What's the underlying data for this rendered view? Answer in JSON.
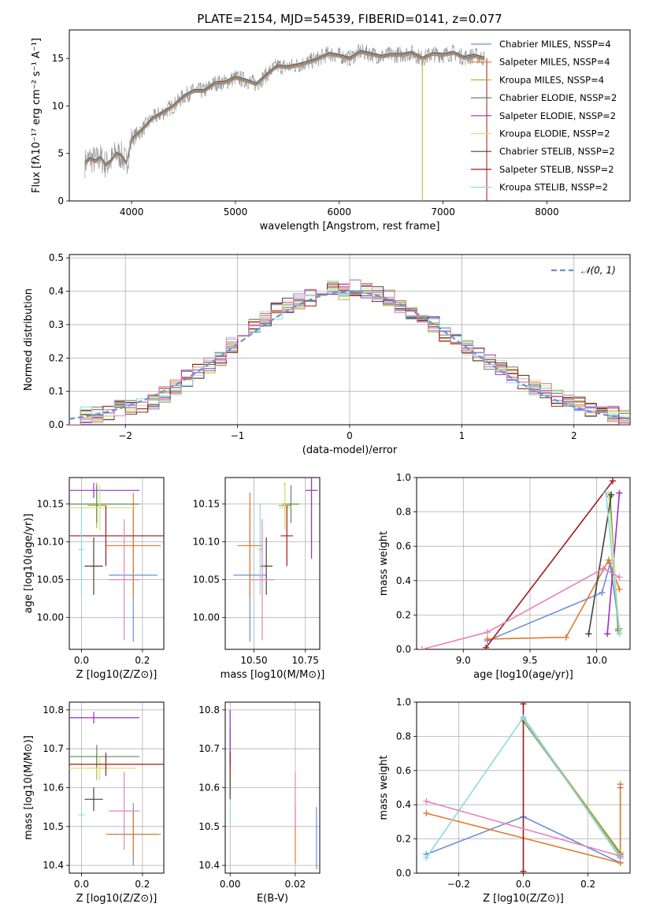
{
  "figure_title": "PLATE=2154, MJD=54539, FIBERID=0141, z=0.077",
  "colors": [
    "#6a8fd8",
    "#e07a2c",
    "#bcae32",
    "#5a8a5a",
    "#9b2fc2",
    "#d7e37a",
    "#444444",
    "#a01818",
    "#8bdbe0",
    "#e882b8"
  ],
  "chart_data": [
    {
      "id": "spectrum",
      "type": "line",
      "title": "PLATE=2154, MJD=54539, FIBERID=0141, z=0.077",
      "xlabel": "wavelength [Angstrom, rest frame]",
      "ylabel": "Flux [fλ10⁻¹⁷ erg cm⁻² s⁻¹ A⁻¹]",
      "xlim": [
        3400,
        8800
      ],
      "ylim": [
        0,
        18
      ],
      "xticks": [
        4000,
        5000,
        6000,
        7000,
        8000
      ],
      "yticks": [
        0,
        5,
        10,
        15
      ],
      "grid": false,
      "legend_position": "top-right",
      "data_curve": {
        "name": "data",
        "x": [
          3550,
          3600,
          3650,
          3700,
          3750,
          3800,
          3850,
          3900,
          3950,
          4000,
          4100,
          4200,
          4300,
          4400,
          4500,
          4600,
          4700,
          4800,
          4900,
          5000,
          5100,
          5200,
          5300,
          5400,
          5500,
          5600,
          5700,
          5800,
          5900,
          6000,
          6100,
          6200,
          6300,
          6400,
          6500,
          6600,
          6700,
          6800,
          6900,
          7000,
          7100,
          7200,
          7300,
          7400
        ],
        "y": [
          4.0,
          4.5,
          4.2,
          4.6,
          3.8,
          4.2,
          5.0,
          4.8,
          4.0,
          6.5,
          7.5,
          8.7,
          9.3,
          10.0,
          11.0,
          11.6,
          11.6,
          12.4,
          12.5,
          13.0,
          12.7,
          12.3,
          13.3,
          14.2,
          14.1,
          14.3,
          14.6,
          15.0,
          15.5,
          15.3,
          15.0,
          15.7,
          15.5,
          15.2,
          15.4,
          15.4,
          15.6,
          15.0,
          15.5,
          15.4,
          15.6,
          15.1,
          15.3,
          15.0
        ]
      },
      "legend": [
        {
          "label": "Chabrier MILES, NSSP=4",
          "color": "#6a8fd8"
        },
        {
          "label": "Salpeter MILES, NSSP=4",
          "color": "#e07a2c"
        },
        {
          "label": "Kroupa MILES, NSSP=4",
          "color": "#bcae32"
        },
        {
          "label": "Chabrier ELODIE, NSSP=2",
          "color": "#5a8a5a"
        },
        {
          "label": "Salpeter ELODIE, NSSP=2",
          "color": "#9b2fc2"
        },
        {
          "label": "Kroupa ELODIE, NSSP=2",
          "color": "#d7e37a"
        },
        {
          "label": "Chabrier STELIB, NSSP=2",
          "color": "#444444"
        },
        {
          "label": "Salpeter STELIB, NSSP=2",
          "color": "#a01818"
        },
        {
          "label": "Kroupa STELIB, NSSP=2",
          "color": "#8bdbe0"
        }
      ]
    },
    {
      "id": "residuals",
      "type": "line",
      "xlabel": "(data-model)/error",
      "ylabel": "Normed distribution",
      "xlim": [
        -2.5,
        2.5
      ],
      "ylim": [
        0,
        0.51
      ],
      "xticks": [
        -2,
        -1,
        0,
        1,
        2
      ],
      "yticks": [
        0.0,
        0.1,
        0.2,
        0.3,
        0.4,
        0.5
      ],
      "grid": true,
      "legend_position": "top-right",
      "reference_curve": {
        "name": "𝒩(0, 1)",
        "color": "#6a8fd8",
        "dashed": true
      },
      "bin_centers": [
        -2.45,
        -2.35,
        -2.25,
        -2.15,
        -2.05,
        -1.95,
        -1.85,
        -1.75,
        -1.65,
        -1.55,
        -1.45,
        -1.35,
        -1.25,
        -1.15,
        -1.05,
        -0.95,
        -0.85,
        -0.75,
        -0.65,
        -0.55,
        -0.45,
        -0.35,
        -0.25,
        -0.15,
        -0.05,
        0.05,
        0.15,
        0.25,
        0.35,
        0.45,
        0.55,
        0.65,
        0.75,
        0.85,
        0.95,
        1.05,
        1.15,
        1.25,
        1.35,
        1.45,
        1.55,
        1.65,
        1.75,
        1.85,
        1.95,
        2.05,
        2.15,
        2.25,
        2.35,
        2.45
      ],
      "histogram_values": [
        0.02,
        0.03,
        0.03,
        0.04,
        0.05,
        0.05,
        0.06,
        0.07,
        0.09,
        0.11,
        0.14,
        0.16,
        0.18,
        0.2,
        0.24,
        0.27,
        0.3,
        0.32,
        0.34,
        0.36,
        0.37,
        0.38,
        0.4,
        0.41,
        0.4,
        0.41,
        0.4,
        0.39,
        0.38,
        0.36,
        0.34,
        0.32,
        0.3,
        0.27,
        0.25,
        0.23,
        0.21,
        0.19,
        0.17,
        0.15,
        0.13,
        0.11,
        0.1,
        0.08,
        0.07,
        0.06,
        0.05,
        0.04,
        0.03,
        0.02
      ]
    },
    {
      "id": "age-vs-Z",
      "type": "scatter",
      "xlabel": "Z [log10(Z/Z⊙)]",
      "ylabel": "age  [log10(age/yr)]",
      "xlim": [
        -0.04,
        0.27
      ],
      "ylim": [
        9.958,
        10.185
      ],
      "xticks": [
        0.0,
        0.2
      ],
      "xticklabels": [
        "0.0",
        "0.2"
      ],
      "yticks": [
        10.0,
        10.05,
        10.1,
        10.15
      ],
      "yticklabels": [
        "10.00",
        "10.05",
        "10.10",
        "10.15"
      ],
      "grid": true,
      "points": [
        {
          "x": 0.17,
          "xerr": 0.08,
          "y": 10.056,
          "yerr": 0.088,
          "color": "#6a8fd8"
        },
        {
          "x": 0.17,
          "xerr": 0.09,
          "y": 10.095,
          "yerr": 0.07,
          "color": "#e07a2c"
        },
        {
          "x": 0.05,
          "xerr": 0.03,
          "y": 10.148,
          "yerr": 0.03,
          "color": "#bcae32"
        },
        {
          "x": 0.05,
          "xerr": 0.14,
          "y": 10.15,
          "yerr": 0.025,
          "color": "#5a8a5a"
        },
        {
          "x": 0.04,
          "xerr": 0.15,
          "y": 10.168,
          "yerr": 0.01,
          "color": "#9b2fc2"
        },
        {
          "x": 0.06,
          "xerr": 0.12,
          "y": 10.145,
          "yerr": 0.03,
          "color": "#d7e37a"
        },
        {
          "x": 0.04,
          "xerr": 0.03,
          "y": 10.068,
          "yerr": 0.038,
          "color": "#444444"
        },
        {
          "x": 0.08,
          "xerr": 0.19,
          "y": 10.108,
          "yerr": 0.04,
          "color": "#a01818"
        },
        {
          "x": 0.0,
          "xerr": 0.01,
          "y": 10.09,
          "yerr": 0.06,
          "color": "#8bdbe0"
        },
        {
          "x": 0.14,
          "xerr": 0.05,
          "y": 10.05,
          "yerr": 0.08,
          "color": "#e882b8"
        }
      ]
    },
    {
      "id": "age-vs-mass",
      "type": "scatter",
      "xlabel": "mass [log10(M/M⊙)]",
      "xlim": [
        10.36,
        10.82
      ],
      "ylim": [
        9.958,
        10.185
      ],
      "xticks": [
        10.5,
        10.75
      ],
      "xticklabels": [
        "10.50",
        "10.75"
      ],
      "yticks": [
        10.0,
        10.05,
        10.1,
        10.15
      ],
      "yticklabels": [
        "10.00",
        "10.05",
        "10.10",
        "10.15"
      ],
      "grid": true,
      "points": [
        {
          "x": 10.48,
          "xerr": 0.08,
          "y": 10.056,
          "yerr": 0.088,
          "color": "#6a8fd8"
        },
        {
          "x": 10.48,
          "xerr": 0.06,
          "y": 10.095,
          "yerr": 0.07,
          "color": "#e07a2c"
        },
        {
          "x": 10.65,
          "xerr": 0.03,
          "y": 10.148,
          "yerr": 0.03,
          "color": "#bcae32"
        },
        {
          "x": 10.68,
          "xerr": 0.04,
          "y": 10.15,
          "yerr": 0.025,
          "color": "#5a8a5a"
        },
        {
          "x": 10.78,
          "xerr": 0.03,
          "y": 10.168,
          "yerr": 0.09,
          "color": "#9b2fc2"
        },
        {
          "x": 10.65,
          "xerr": 0.03,
          "y": 10.145,
          "yerr": 0.03,
          "color": "#d7e37a"
        },
        {
          "x": 10.56,
          "xerr": 0.03,
          "y": 10.068,
          "yerr": 0.038,
          "color": "#444444"
        },
        {
          "x": 10.66,
          "xerr": 0.03,
          "y": 10.108,
          "yerr": 0.04,
          "color": "#a01818"
        },
        {
          "x": 10.53,
          "xerr": 0.01,
          "y": 10.09,
          "yerr": 0.06,
          "color": "#8bdbe0"
        },
        {
          "x": 10.54,
          "xerr": 0.06,
          "y": 10.05,
          "yerr": 0.08,
          "color": "#e882b8"
        }
      ]
    },
    {
      "id": "weight-vs-age",
      "type": "line",
      "xlabel": "age  [log10(age/yr)]",
      "ylabel": "mass weight",
      "xlim": [
        8.65,
        10.25
      ],
      "ylim": [
        0,
        1.0
      ],
      "xticks": [
        9.0,
        9.5,
        10.0
      ],
      "xticklabels": [
        "9.0",
        "9.5",
        "10.0"
      ],
      "yticks": [
        0.0,
        0.2,
        0.4,
        0.6,
        0.8,
        1.0
      ],
      "yticklabels": [
        "0.0",
        "0.2",
        "0.4",
        "0.6",
        "0.8",
        "1.0"
      ],
      "grid": true,
      "series": [
        {
          "color": "#6a8fd8",
          "x": [
            9.18,
            10.04,
            10.1,
            10.17
          ],
          "y": [
            0.05,
            0.33,
            0.5,
            0.12
          ]
        },
        {
          "color": "#e07a2c",
          "x": [
            9.18,
            9.77,
            10.09,
            10.17
          ],
          "y": [
            0.06,
            0.07,
            0.52,
            0.35
          ]
        },
        {
          "color": "#bcae32",
          "x": [
            10.1,
            10.16
          ],
          "y": [
            0.9,
            0.12
          ]
        },
        {
          "color": "#5a8a5a",
          "x": [
            10.1,
            10.16
          ],
          "y": [
            0.89,
            0.11
          ]
        },
        {
          "color": "#9b2fc2",
          "x": [
            10.08,
            10.17
          ],
          "y": [
            0.09,
            0.91
          ]
        },
        {
          "color": "#d7e37a",
          "x": [
            10.09,
            10.17
          ],
          "y": [
            0.9,
            0.1
          ]
        },
        {
          "color": "#444444",
          "x": [
            9.94,
            10.11
          ],
          "y": [
            0.09,
            0.9
          ]
        },
        {
          "color": "#a01818",
          "x": [
            9.17,
            10.12
          ],
          "y": [
            0.01,
            0.98
          ]
        },
        {
          "color": "#8bdbe0",
          "x": [
            10.07,
            10.17
          ],
          "y": [
            0.91,
            0.09
          ]
        },
        {
          "color": "#e882b8",
          "x": [
            8.69,
            9.18,
            10.05,
            10.17
          ],
          "y": [
            0.0,
            0.1,
            0.47,
            0.42
          ]
        }
      ]
    },
    {
      "id": "mass-vs-Z",
      "type": "scatter",
      "xlabel": "Z [log10(Z/Z⊙)]",
      "ylabel": "mass [log10(M/M⊙)]",
      "xlim": [
        -0.04,
        0.27
      ],
      "ylim": [
        10.38,
        10.82
      ],
      "xticks": [
        0.0,
        0.2
      ],
      "xticklabels": [
        "0.0",
        "0.2"
      ],
      "yticks": [
        10.4,
        10.5,
        10.6,
        10.7,
        10.8
      ],
      "yticklabels": [
        "10.4",
        "10.5",
        "10.6",
        "10.7",
        "10.8"
      ],
      "grid": true,
      "points": [
        {
          "x": 0.17,
          "xerr": 0.08,
          "y": 10.48,
          "yerr": 0.08,
          "color": "#6a8fd8"
        },
        {
          "x": 0.17,
          "xerr": 0.09,
          "y": 10.48,
          "yerr": 0.06,
          "color": "#e07a2c"
        },
        {
          "x": 0.05,
          "xerr": 0.03,
          "y": 10.65,
          "yerr": 0.03,
          "color": "#bcae32"
        },
        {
          "x": 0.05,
          "xerr": 0.14,
          "y": 10.68,
          "yerr": 0.03,
          "color": "#5a8a5a"
        },
        {
          "x": 0.04,
          "xerr": 0.15,
          "y": 10.78,
          "yerr": 0.015,
          "color": "#9b2fc2"
        },
        {
          "x": 0.06,
          "xerr": 0.12,
          "y": 10.65,
          "yerr": 0.03,
          "color": "#d7e37a"
        },
        {
          "x": 0.04,
          "xerr": 0.03,
          "y": 10.57,
          "yerr": 0.03,
          "color": "#444444"
        },
        {
          "x": 0.08,
          "xerr": 0.19,
          "y": 10.66,
          "yerr": 0.03,
          "color": "#a01818"
        },
        {
          "x": 0.0,
          "xerr": 0.01,
          "y": 10.53,
          "yerr": 0.01,
          "color": "#8bdbe0"
        },
        {
          "x": 0.14,
          "xerr": 0.05,
          "y": 10.54,
          "yerr": 0.1,
          "color": "#e882b8"
        }
      ]
    },
    {
      "id": "mass-vs-EBV",
      "type": "scatter",
      "xlabel": "E(B-V)",
      "xlim": [
        -0.0015,
        0.0275
      ],
      "ylim": [
        10.38,
        10.82
      ],
      "xticks": [
        0.0,
        0.02
      ],
      "xticklabels": [
        "0.00",
        "0.02"
      ],
      "yticks": [
        10.4,
        10.5,
        10.6,
        10.7,
        10.8
      ],
      "yticklabels": [
        "10.4",
        "10.5",
        "10.6",
        "10.7",
        "10.8"
      ],
      "grid": true,
      "points": [
        {
          "x": 0.0265,
          "xerr": 0,
          "y": 10.47,
          "yerr": 0.08,
          "color": "#6a8fd8"
        },
        {
          "x": 0.02,
          "xerr": 0,
          "y": 10.48,
          "yerr": 0.075,
          "color": "#e07a2c"
        },
        {
          "x": 0.0,
          "xerr": 0,
          "y": 10.62,
          "yerr": 0.03,
          "color": "#bcae32"
        },
        {
          "x": 0.0,
          "xerr": 0,
          "y": 10.7,
          "yerr": 0.05,
          "color": "#5a8a5a"
        },
        {
          "x": 0.0,
          "xerr": 0,
          "y": 10.73,
          "yerr": 0.07,
          "color": "#9b2fc2"
        },
        {
          "x": 0.0,
          "xerr": 0,
          "y": 10.62,
          "yerr": 0.03,
          "color": "#d7e37a"
        },
        {
          "x": 0.0,
          "xerr": 0,
          "y": 10.6,
          "yerr": 0.03,
          "color": "#444444"
        },
        {
          "x": 0.0,
          "xerr": 0,
          "y": 10.66,
          "yerr": 0.03,
          "color": "#a01818"
        },
        {
          "x": 0.0,
          "xerr": 0,
          "y": 10.53,
          "yerr": 0.02,
          "color": "#8bdbe0"
        },
        {
          "x": 0.02,
          "xerr": 0,
          "y": 10.57,
          "yerr": 0.07,
          "color": "#e882b8"
        }
      ]
    },
    {
      "id": "weight-vs-Z",
      "type": "line",
      "xlabel": "Z [log10(Z/Z⊙)]",
      "ylabel": "mass weight",
      "xlim": [
        -0.33,
        0.33
      ],
      "ylim": [
        0,
        1.0
      ],
      "xticks": [
        -0.2,
        0.0,
        0.2
      ],
      "xticklabels": [
        "−0.2",
        "0.0",
        "0.2"
      ],
      "yticks": [
        0.0,
        0.2,
        0.4,
        0.6,
        0.8,
        1.0
      ],
      "yticklabels": [
        "0.0",
        "0.2",
        "0.4",
        "0.6",
        "0.8",
        "1.0"
      ],
      "grid": true,
      "series": [
        {
          "color": "#6a8fd8",
          "x": [
            -0.3,
            0.0,
            0.3,
            0.3
          ],
          "y": [
            0.11,
            0.33,
            0.06,
            0.5
          ]
        },
        {
          "color": "#e07a2c",
          "x": [
            -0.3,
            0.3,
            0.3
          ],
          "y": [
            0.35,
            0.06,
            0.52
          ]
        },
        {
          "color": "#bcae32",
          "x": [
            0.0,
            0.3
          ],
          "y": [
            0.9,
            0.12
          ]
        },
        {
          "color": "#5a8a5a",
          "x": [
            0.0,
            0.3
          ],
          "y": [
            0.89,
            0.11
          ]
        },
        {
          "color": "#9b2fc2",
          "x": [
            0.0,
            0.3
          ],
          "y": [
            0.91,
            0.09
          ]
        },
        {
          "color": "#d7e37a",
          "x": [
            0.0,
            0.3
          ],
          "y": [
            0.9,
            0.1
          ]
        },
        {
          "color": "#444444",
          "x": [
            0.0,
            0.3
          ],
          "y": [
            0.91,
            0.09
          ]
        },
        {
          "color": "#a01818",
          "x": [
            0.0,
            0.0
          ],
          "y": [
            0.01,
            0.99
          ]
        },
        {
          "color": "#8bdbe0",
          "x": [
            -0.3,
            0.0,
            0.3
          ],
          "y": [
            0.09,
            0.91,
            0.09
          ]
        },
        {
          "color": "#e882b8",
          "x": [
            -0.3,
            0.3
          ],
          "y": [
            0.42,
            0.1
          ]
        }
      ]
    }
  ]
}
